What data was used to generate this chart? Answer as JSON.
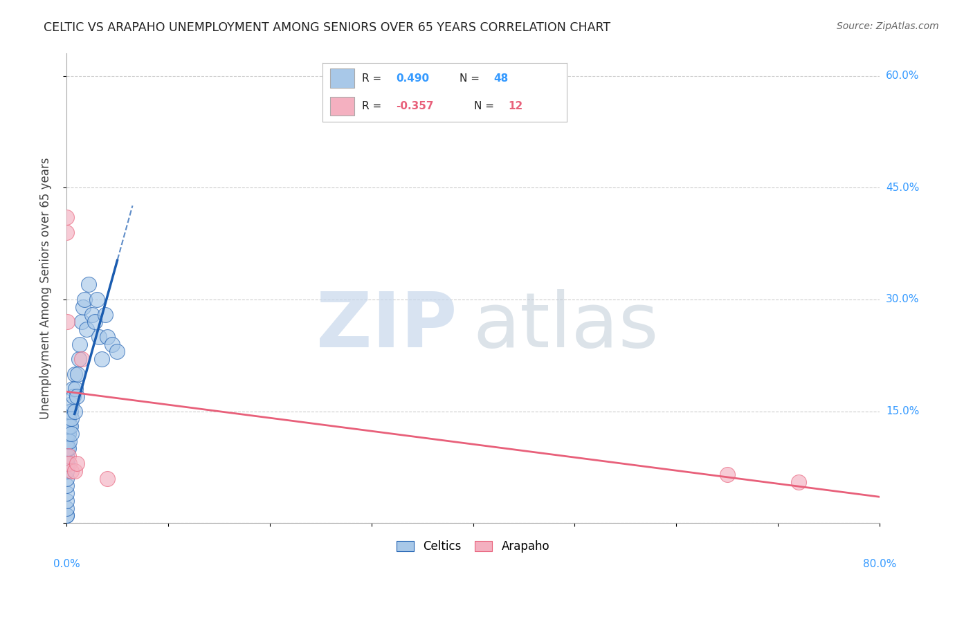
{
  "title": "CELTIC VS ARAPAHO UNEMPLOYMENT AMONG SENIORS OVER 65 YEARS CORRELATION CHART",
  "source": "Source: ZipAtlas.com",
  "ylabel": "Unemployment Among Seniors over 65 years",
  "xlim": [
    0.0,
    0.8
  ],
  "ylim": [
    0.0,
    0.63
  ],
  "celtics_color": "#a8c8e8",
  "arapaho_color": "#f4b0c0",
  "regression_blue_color": "#1a5cb0",
  "regression_pink_color": "#e8607a",
  "celtics_x": [
    0.0,
    0.0,
    0.0,
    0.0,
    0.0,
    0.0,
    0.0,
    0.0,
    0.0,
    0.0,
    0.001,
    0.001,
    0.001,
    0.001,
    0.002,
    0.002,
    0.002,
    0.003,
    0.003,
    0.003,
    0.004,
    0.004,
    0.005,
    0.005,
    0.005,
    0.006,
    0.007,
    0.008,
    0.008,
    0.009,
    0.01,
    0.011,
    0.012,
    0.013,
    0.015,
    0.016,
    0.018,
    0.02,
    0.022,
    0.025,
    0.028,
    0.03,
    0.032,
    0.035,
    0.038,
    0.04,
    0.045,
    0.05
  ],
  "celtics_y": [
    0.01,
    0.01,
    0.02,
    0.03,
    0.04,
    0.05,
    0.06,
    0.07,
    0.08,
    0.09,
    0.08,
    0.1,
    0.11,
    0.12,
    0.1,
    0.12,
    0.14,
    0.11,
    0.13,
    0.15,
    0.13,
    0.15,
    0.12,
    0.14,
    0.16,
    0.18,
    0.17,
    0.15,
    0.2,
    0.18,
    0.17,
    0.2,
    0.22,
    0.24,
    0.27,
    0.29,
    0.3,
    0.26,
    0.32,
    0.28,
    0.27,
    0.3,
    0.25,
    0.22,
    0.28,
    0.25,
    0.24,
    0.23
  ],
  "arapaho_x": [
    0.0,
    0.0,
    0.001,
    0.002,
    0.003,
    0.005,
    0.008,
    0.01,
    0.015,
    0.04,
    0.65,
    0.72
  ],
  "arapaho_y": [
    0.39,
    0.41,
    0.27,
    0.09,
    0.08,
    0.07,
    0.07,
    0.08,
    0.22,
    0.06,
    0.065,
    0.055
  ],
  "background_color": "#ffffff",
  "grid_color": "#cccccc",
  "watermark_zip_color": "#c8d8ec",
  "watermark_atlas_color": "#c0ccd8"
}
